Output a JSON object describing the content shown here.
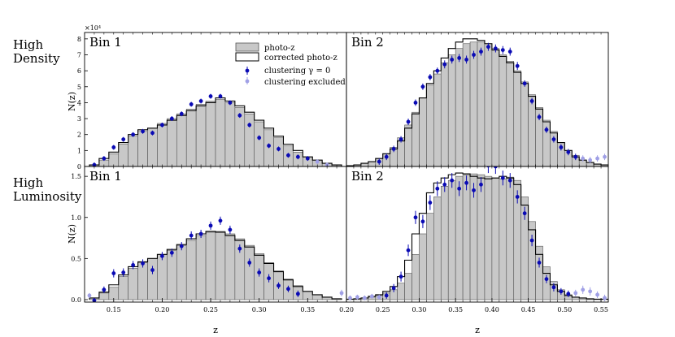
{
  "row_labels": [
    {
      "line1": "High",
      "line2": "Density"
    },
    {
      "line1": "High",
      "line2": "Luminosity"
    }
  ],
  "y_axis_label": "N(z)",
  "x_axis_label": "z",
  "top_multiplier": "×10⁴",
  "legend": {
    "photoz": "photo-z",
    "corrected": "corrected photo-z",
    "clustering": "clustering γ = 0",
    "excluded": "clustering excluded"
  },
  "colors": {
    "hist_fill": "#c8c8c8",
    "hist_edge": "#555555",
    "corrected_line": "#000000",
    "clustering": "#0a0ab4",
    "excluded": "#a0a0e6"
  },
  "chart_data": [
    {
      "type": "bar",
      "title": "Bin 1",
      "row": "High Density",
      "xlim": [
        0.12,
        0.39
      ],
      "ylim": [
        0,
        8.4
      ],
      "y_ticks": [
        0,
        1,
        2,
        3,
        4,
        5,
        6,
        7,
        8
      ],
      "x_ticks": [],
      "bin_edges": [
        0.125,
        0.135,
        0.145,
        0.155,
        0.165,
        0.175,
        0.185,
        0.195,
        0.205,
        0.215,
        0.225,
        0.235,
        0.245,
        0.255,
        0.265,
        0.275,
        0.285,
        0.295,
        0.305,
        0.315,
        0.325,
        0.335,
        0.345,
        0.355,
        0.365,
        0.375,
        0.385
      ],
      "photoz": [
        0.1,
        0.4,
        0.8,
        1.4,
        1.9,
        2.2,
        2.4,
        2.7,
        3.0,
        3.3,
        3.6,
        3.9,
        4.1,
        4.2,
        4.0,
        3.7,
        3.3,
        2.8,
        2.3,
        1.8,
        1.3,
        0.9,
        0.6,
        0.4,
        0.2,
        0.1
      ],
      "corrected": [
        0.1,
        0.5,
        0.9,
        1.5,
        2.0,
        2.3,
        2.4,
        2.6,
        2.9,
        3.2,
        3.5,
        3.8,
        4.0,
        4.3,
        4.1,
        3.8,
        3.4,
        2.9,
        2.4,
        1.9,
        1.4,
        1.0,
        0.6,
        0.4,
        0.2,
        0.1
      ],
      "clustering": [
        {
          "x": 0.13,
          "y": 0.1,
          "err": 0.15
        },
        {
          "x": 0.14,
          "y": 0.5,
          "err": 0.15
        },
        {
          "x": 0.15,
          "y": 1.2,
          "err": 0.15
        },
        {
          "x": 0.16,
          "y": 1.7,
          "err": 0.15
        },
        {
          "x": 0.17,
          "y": 2.0,
          "err": 0.15
        },
        {
          "x": 0.18,
          "y": 2.2,
          "err": 0.15
        },
        {
          "x": 0.19,
          "y": 2.1,
          "err": 0.15
        },
        {
          "x": 0.2,
          "y": 2.6,
          "err": 0.15
        },
        {
          "x": 0.21,
          "y": 3.0,
          "err": 0.15
        },
        {
          "x": 0.22,
          "y": 3.3,
          "err": 0.15
        },
        {
          "x": 0.23,
          "y": 3.9,
          "err": 0.15
        },
        {
          "x": 0.24,
          "y": 4.1,
          "err": 0.15
        },
        {
          "x": 0.25,
          "y": 4.4,
          "err": 0.15
        },
        {
          "x": 0.26,
          "y": 4.4,
          "err": 0.15
        },
        {
          "x": 0.27,
          "y": 4.0,
          "err": 0.15
        },
        {
          "x": 0.28,
          "y": 3.2,
          "err": 0.15
        },
        {
          "x": 0.29,
          "y": 2.6,
          "err": 0.15
        },
        {
          "x": 0.3,
          "y": 1.8,
          "err": 0.15
        },
        {
          "x": 0.31,
          "y": 1.3,
          "err": 0.15
        },
        {
          "x": 0.32,
          "y": 1.1,
          "err": 0.15
        },
        {
          "x": 0.33,
          "y": 0.7,
          "err": 0.15
        },
        {
          "x": 0.34,
          "y": 0.6,
          "err": 0.15
        },
        {
          "x": 0.35,
          "y": 0.5,
          "err": 0.15
        }
      ],
      "excluded": [
        {
          "x": 0.36,
          "y": 0.3,
          "err": 0.15
        },
        {
          "x": 0.37,
          "y": 0.1,
          "err": 0.15
        }
      ]
    },
    {
      "type": "bar",
      "title": "Bin 2",
      "row": "High Density",
      "xlim": [
        0.2,
        0.56
      ],
      "ylim": [
        0,
        8.4
      ],
      "y_ticks": [],
      "x_ticks": [],
      "bin_edges": [
        0.2,
        0.21,
        0.22,
        0.23,
        0.24,
        0.25,
        0.26,
        0.27,
        0.28,
        0.29,
        0.3,
        0.31,
        0.32,
        0.33,
        0.34,
        0.35,
        0.36,
        0.37,
        0.38,
        0.39,
        0.4,
        0.41,
        0.42,
        0.43,
        0.44,
        0.45,
        0.46,
        0.47,
        0.48,
        0.49,
        0.5,
        0.51,
        0.52,
        0.53,
        0.54,
        0.55,
        0.56
      ],
      "photoz": [
        0.05,
        0.1,
        0.2,
        0.3,
        0.5,
        0.8,
        1.2,
        1.8,
        2.6,
        3.4,
        4.3,
        5.1,
        5.8,
        6.5,
        7.0,
        7.4,
        7.7,
        7.8,
        7.8,
        7.7,
        7.4,
        7.0,
        6.6,
        6.0,
        5.3,
        4.5,
        3.7,
        2.9,
        2.2,
        1.5,
        1.0,
        0.7,
        0.4,
        0.25,
        0.15,
        0.1
      ],
      "corrected": [
        0.05,
        0.1,
        0.2,
        0.3,
        0.5,
        0.8,
        1.1,
        1.6,
        2.4,
        3.3,
        4.3,
        5.2,
        6.0,
        6.8,
        7.4,
        7.8,
        8.0,
        8.0,
        7.9,
        7.7,
        7.3,
        6.9,
        6.5,
        5.9,
        5.2,
        4.4,
        3.6,
        2.8,
        2.1,
        1.5,
        1.0,
        0.6,
        0.4,
        0.25,
        0.15,
        0.1
      ],
      "clustering": [
        {
          "x": 0.245,
          "y": 0.3,
          "err": 0.2
        },
        {
          "x": 0.255,
          "y": 0.6,
          "err": 0.2
        },
        {
          "x": 0.265,
          "y": 1.1,
          "err": 0.2
        },
        {
          "x": 0.275,
          "y": 1.7,
          "err": 0.2
        },
        {
          "x": 0.285,
          "y": 2.8,
          "err": 0.2
        },
        {
          "x": 0.295,
          "y": 4.0,
          "err": 0.2
        },
        {
          "x": 0.305,
          "y": 5.0,
          "err": 0.2
        },
        {
          "x": 0.315,
          "y": 5.6,
          "err": 0.2
        },
        {
          "x": 0.325,
          "y": 6.0,
          "err": 0.2
        },
        {
          "x": 0.335,
          "y": 6.4,
          "err": 0.25
        },
        {
          "x": 0.345,
          "y": 6.7,
          "err": 0.25
        },
        {
          "x": 0.355,
          "y": 6.8,
          "err": 0.25
        },
        {
          "x": 0.365,
          "y": 6.7,
          "err": 0.25
        },
        {
          "x": 0.375,
          "y": 7.0,
          "err": 0.25
        },
        {
          "x": 0.385,
          "y": 7.2,
          "err": 0.25
        },
        {
          "x": 0.395,
          "y": 7.5,
          "err": 0.25
        },
        {
          "x": 0.405,
          "y": 7.4,
          "err": 0.25
        },
        {
          "x": 0.415,
          "y": 7.3,
          "err": 0.25
        },
        {
          "x": 0.425,
          "y": 7.2,
          "err": 0.25
        },
        {
          "x": 0.435,
          "y": 6.3,
          "err": 0.25
        },
        {
          "x": 0.445,
          "y": 5.2,
          "err": 0.2
        },
        {
          "x": 0.455,
          "y": 4.1,
          "err": 0.2
        },
        {
          "x": 0.465,
          "y": 3.1,
          "err": 0.2
        },
        {
          "x": 0.475,
          "y": 2.3,
          "err": 0.2
        },
        {
          "x": 0.485,
          "y": 1.7,
          "err": 0.2
        },
        {
          "x": 0.495,
          "y": 1.2,
          "err": 0.2
        },
        {
          "x": 0.505,
          "y": 0.9,
          "err": 0.2
        },
        {
          "x": 0.515,
          "y": 0.6,
          "err": 0.2
        }
      ],
      "excluded": [
        {
          "x": 0.525,
          "y": 0.5,
          "err": 0.2
        },
        {
          "x": 0.535,
          "y": 0.4,
          "err": 0.2
        },
        {
          "x": 0.545,
          "y": 0.5,
          "err": 0.2
        },
        {
          "x": 0.555,
          "y": 0.6,
          "err": 0.2
        }
      ]
    },
    {
      "type": "bar",
      "title": "Bin 1",
      "row": "High Luminosity",
      "xlim": [
        0.12,
        0.39
      ],
      "ylim": [
        -0.03,
        1.62
      ],
      "y_ticks": [
        0.0,
        0.5,
        1.0,
        1.5
      ],
      "y_tick_labels": [
        "0.0",
        "0.5",
        "1.0",
        "1.5"
      ],
      "x_ticks": [
        0.15,
        0.2,
        0.25,
        0.3,
        0.35
      ],
      "x_tick_labels": [
        "0.15",
        "0.20",
        "0.25",
        "0.30",
        "0.35"
      ],
      "bin_edges": [
        0.125,
        0.135,
        0.145,
        0.155,
        0.165,
        0.175,
        0.185,
        0.195,
        0.205,
        0.215,
        0.225,
        0.235,
        0.245,
        0.255,
        0.265,
        0.275,
        0.285,
        0.295,
        0.305,
        0.315,
        0.325,
        0.335,
        0.345,
        0.355,
        0.365,
        0.375,
        0.385
      ],
      "photoz": [
        0.02,
        0.08,
        0.15,
        0.28,
        0.38,
        0.45,
        0.5,
        0.55,
        0.6,
        0.66,
        0.72,
        0.78,
        0.82,
        0.83,
        0.8,
        0.74,
        0.66,
        0.56,
        0.45,
        0.35,
        0.25,
        0.17,
        0.1,
        0.06,
        0.03,
        0.01
      ],
      "corrected": [
        0.02,
        0.09,
        0.18,
        0.3,
        0.4,
        0.46,
        0.5,
        0.55,
        0.61,
        0.67,
        0.74,
        0.8,
        0.83,
        0.82,
        0.78,
        0.72,
        0.64,
        0.54,
        0.44,
        0.34,
        0.24,
        0.16,
        0.1,
        0.06,
        0.03,
        0.01
      ],
      "clustering": [
        {
          "x": 0.13,
          "y": -0.01,
          "err": 0.03
        },
        {
          "x": 0.14,
          "y": 0.12,
          "err": 0.04
        },
        {
          "x": 0.15,
          "y": 0.32,
          "err": 0.05
        },
        {
          "x": 0.16,
          "y": 0.33,
          "err": 0.05
        },
        {
          "x": 0.17,
          "y": 0.42,
          "err": 0.05
        },
        {
          "x": 0.18,
          "y": 0.44,
          "err": 0.05
        },
        {
          "x": 0.19,
          "y": 0.36,
          "err": 0.05
        },
        {
          "x": 0.2,
          "y": 0.53,
          "err": 0.05
        },
        {
          "x": 0.21,
          "y": 0.57,
          "err": 0.05
        },
        {
          "x": 0.22,
          "y": 0.65,
          "err": 0.05
        },
        {
          "x": 0.23,
          "y": 0.78,
          "err": 0.05
        },
        {
          "x": 0.24,
          "y": 0.8,
          "err": 0.05
        },
        {
          "x": 0.25,
          "y": 0.9,
          "err": 0.05
        },
        {
          "x": 0.26,
          "y": 0.96,
          "err": 0.05
        },
        {
          "x": 0.27,
          "y": 0.85,
          "err": 0.05
        },
        {
          "x": 0.28,
          "y": 0.62,
          "err": 0.05
        },
        {
          "x": 0.29,
          "y": 0.45,
          "err": 0.05
        },
        {
          "x": 0.3,
          "y": 0.33,
          "err": 0.05
        },
        {
          "x": 0.31,
          "y": 0.26,
          "err": 0.05
        },
        {
          "x": 0.32,
          "y": 0.17,
          "err": 0.04
        },
        {
          "x": 0.33,
          "y": 0.13,
          "err": 0.04
        },
        {
          "x": 0.34,
          "y": 0.07,
          "err": 0.04
        }
      ],
      "excluded": [
        {
          "x": 0.125,
          "y": 0.05,
          "err": 0.03
        },
        {
          "x": 0.385,
          "y": 0.08,
          "err": 0.04
        }
      ]
    },
    {
      "type": "bar",
      "title": "Bin 2",
      "row": "High Luminosity",
      "xlim": [
        0.2,
        0.56
      ],
      "ylim": [
        -0.03,
        1.62
      ],
      "y_ticks": [],
      "x_ticks": [
        0.2,
        0.25,
        0.3,
        0.35,
        0.4,
        0.45,
        0.5,
        0.55
      ],
      "x_tick_labels": [
        "0.20",
        "0.25",
        "0.30",
        "0.35",
        "0.40",
        "0.45",
        "0.50",
        "0.55"
      ],
      "bin_edges": [
        0.2,
        0.21,
        0.22,
        0.23,
        0.24,
        0.25,
        0.26,
        0.27,
        0.28,
        0.29,
        0.3,
        0.31,
        0.32,
        0.33,
        0.34,
        0.35,
        0.36,
        0.37,
        0.38,
        0.39,
        0.4,
        0.41,
        0.42,
        0.43,
        0.44,
        0.45,
        0.46,
        0.47,
        0.48,
        0.49,
        0.5,
        0.51,
        0.52,
        0.53,
        0.54,
        0.55,
        0.56
      ],
      "photoz": [
        0.005,
        0.01,
        0.02,
        0.03,
        0.05,
        0.08,
        0.12,
        0.2,
        0.32,
        0.55,
        0.8,
        1.05,
        1.25,
        1.38,
        1.45,
        1.5,
        1.52,
        1.53,
        1.52,
        1.5,
        1.48,
        1.47,
        1.49,
        1.45,
        1.25,
        0.95,
        0.65,
        0.4,
        0.22,
        0.12,
        0.06,
        0.03,
        0.02,
        0.01,
        0.005,
        0.005
      ],
      "corrected": [
        0.005,
        0.01,
        0.02,
        0.04,
        0.06,
        0.1,
        0.16,
        0.28,
        0.48,
        0.8,
        1.05,
        1.3,
        1.42,
        1.48,
        1.52,
        1.54,
        1.53,
        1.5,
        1.48,
        1.47,
        1.48,
        1.5,
        1.48,
        1.4,
        1.15,
        0.85,
        0.55,
        0.32,
        0.18,
        0.1,
        0.05,
        0.03,
        0.02,
        0.01,
        0.005,
        0.005
      ],
      "clustering": [
        {
          "x": 0.255,
          "y": 0.05,
          "err": 0.04
        },
        {
          "x": 0.265,
          "y": 0.14,
          "err": 0.05
        },
        {
          "x": 0.275,
          "y": 0.28,
          "err": 0.06
        },
        {
          "x": 0.285,
          "y": 0.6,
          "err": 0.07
        },
        {
          "x": 0.295,
          "y": 1.0,
          "err": 0.08
        },
        {
          "x": 0.305,
          "y": 0.95,
          "err": 0.08
        },
        {
          "x": 0.315,
          "y": 1.18,
          "err": 0.09
        },
        {
          "x": 0.325,
          "y": 1.35,
          "err": 0.09
        },
        {
          "x": 0.335,
          "y": 1.4,
          "err": 0.09
        },
        {
          "x": 0.345,
          "y": 1.45,
          "err": 0.09
        },
        {
          "x": 0.355,
          "y": 1.35,
          "err": 0.09
        },
        {
          "x": 0.365,
          "y": 1.42,
          "err": 0.09
        },
        {
          "x": 0.375,
          "y": 1.33,
          "err": 0.09
        },
        {
          "x": 0.385,
          "y": 1.4,
          "err": 0.09
        },
        {
          "x": 0.395,
          "y": 1.63,
          "err": 0.09
        },
        {
          "x": 0.405,
          "y": 1.62,
          "err": 0.09
        },
        {
          "x": 0.415,
          "y": 1.48,
          "err": 0.09
        },
        {
          "x": 0.425,
          "y": 1.45,
          "err": 0.09
        },
        {
          "x": 0.435,
          "y": 1.25,
          "err": 0.08
        },
        {
          "x": 0.445,
          "y": 1.05,
          "err": 0.08
        },
        {
          "x": 0.455,
          "y": 0.72,
          "err": 0.07
        },
        {
          "x": 0.465,
          "y": 0.45,
          "err": 0.06
        },
        {
          "x": 0.475,
          "y": 0.25,
          "err": 0.05
        },
        {
          "x": 0.485,
          "y": 0.15,
          "err": 0.05
        },
        {
          "x": 0.495,
          "y": 0.1,
          "err": 0.04
        },
        {
          "x": 0.505,
          "y": 0.07,
          "err": 0.04
        }
      ],
      "excluded": [
        {
          "x": 0.205,
          "y": 0.02,
          "err": 0.03
        },
        {
          "x": 0.215,
          "y": 0.03,
          "err": 0.03
        },
        {
          "x": 0.225,
          "y": 0.02,
          "err": 0.03
        },
        {
          "x": 0.235,
          "y": 0.04,
          "err": 0.03
        },
        {
          "x": 0.245,
          "y": 0.03,
          "err": 0.03
        },
        {
          "x": 0.515,
          "y": 0.08,
          "err": 0.04
        },
        {
          "x": 0.525,
          "y": 0.12,
          "err": 0.05
        },
        {
          "x": 0.535,
          "y": 0.1,
          "err": 0.05
        },
        {
          "x": 0.545,
          "y": 0.06,
          "err": 0.04
        },
        {
          "x": 0.555,
          "y": 0.02,
          "err": 0.04
        }
      ]
    }
  ]
}
